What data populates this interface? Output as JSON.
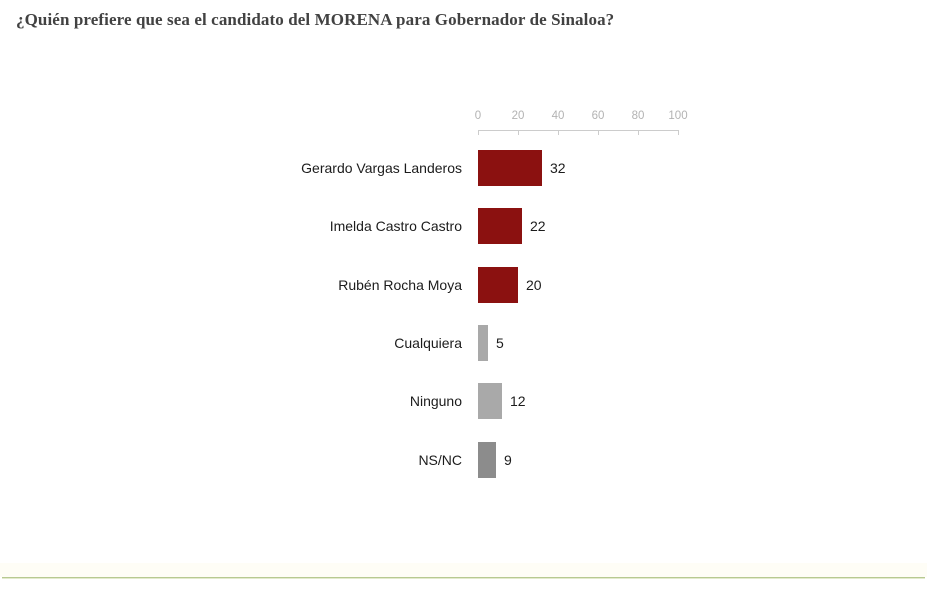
{
  "title": "¿Quién prefiere que sea el candidato del MORENA para Gobernador de Sinaloa?",
  "chart_data": {
    "type": "bar",
    "orientation": "horizontal",
    "title": "¿Quién prefiere que sea el candidato del MORENA para Gobernador de Sinaloa?",
    "categories": [
      "Gerardo Vargas Landeros",
      "Imelda Castro Castro",
      "Rubén Rocha Moya",
      "Cualquiera",
      "Ninguno",
      "NS/NC"
    ],
    "values": [
      32,
      22,
      20,
      5,
      12,
      9
    ],
    "bar_colors": [
      "#8b1110",
      "#8b1110",
      "#8b1110",
      "#a9a9a9",
      "#a9a9a9",
      "#8c8c8c"
    ],
    "axis_ticks": [
      0,
      20,
      40,
      60,
      80,
      100
    ],
    "xlim": [
      0,
      100
    ],
    "xlabel": "",
    "ylabel": "",
    "grid": false,
    "value_labels": true,
    "axis_position": "top",
    "legend": "none"
  },
  "colors": {
    "maroon": "#8b1110",
    "gray_light": "#a9a9a9",
    "gray_dark": "#8c8c8c",
    "axis_text": "#b3b3b3",
    "axis_line": "#cccccc",
    "label_text": "#1c1c1c",
    "title_text": "#424242",
    "bottom_rule": "#b7c991"
  }
}
